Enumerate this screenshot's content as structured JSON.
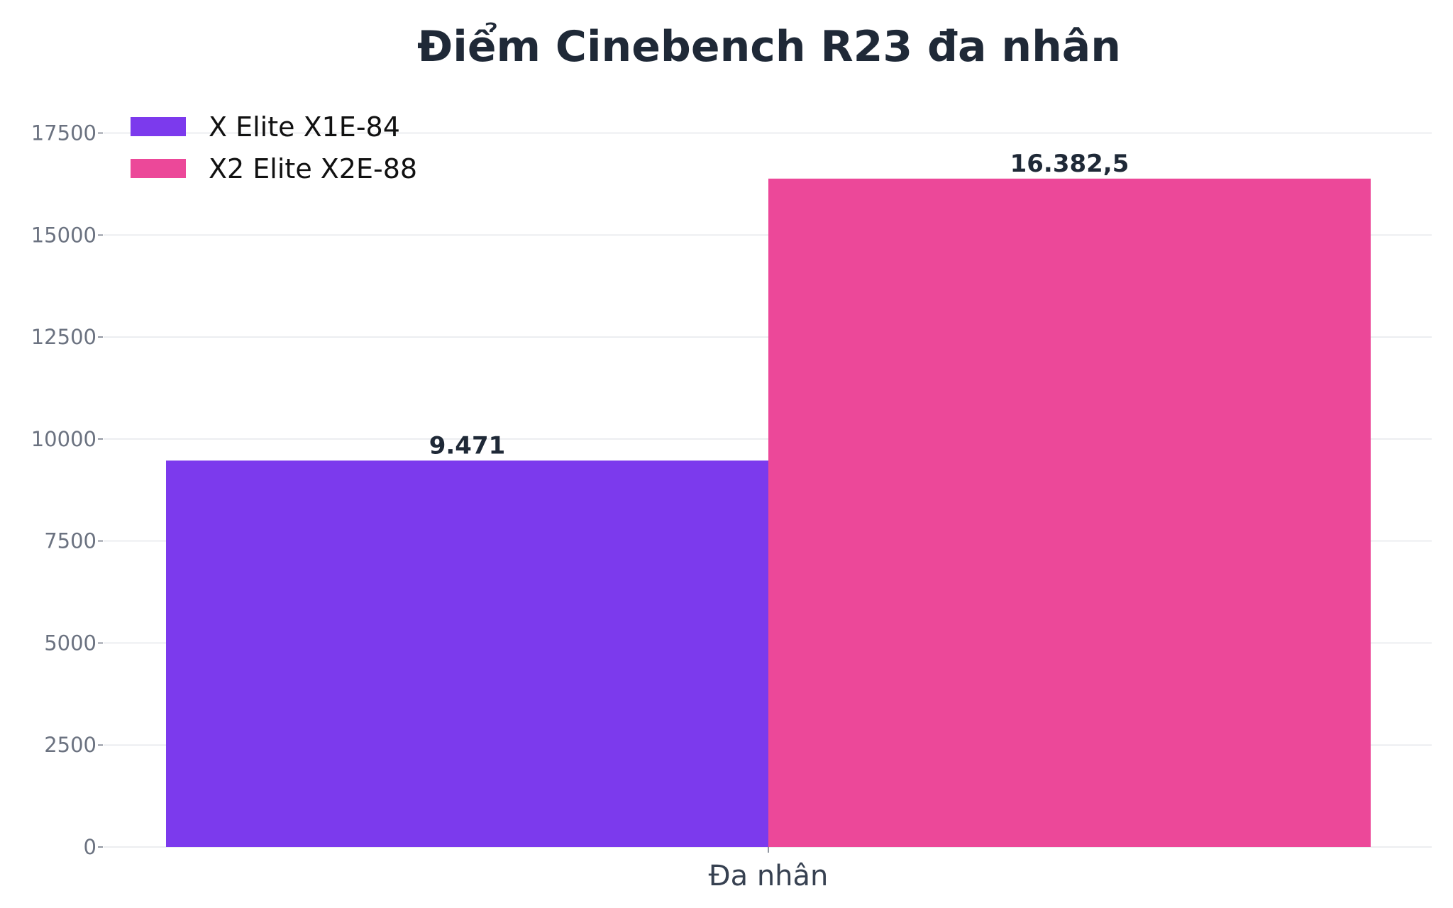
{
  "chart_data": {
    "type": "bar",
    "title": "Điểm Cinebench R23 đa nhân",
    "xlabel": "",
    "ylabel": "",
    "categories": [
      "Đa nhân"
    ],
    "series": [
      {
        "name": "X Elite X1E-84",
        "values": [
          9471
        ],
        "value_labels": [
          "9.471"
        ],
        "color": "#7c3aed"
      },
      {
        "name": "X2 Elite X2E-88",
        "values": [
          16382.5
        ],
        "value_labels": [
          "16.382,5"
        ],
        "color": "#ec4899"
      }
    ],
    "ylim": [
      0,
      18500
    ],
    "yticks": [
      0,
      2500,
      5000,
      7500,
      10000,
      12500,
      15000,
      17500
    ],
    "grid": true,
    "legend_position": "top-left",
    "colors": {
      "title": "#1f2937",
      "tick_label": "#6b7280",
      "category_label": "#374151",
      "value_label": "#1f2937",
      "grid": "#e5e7eb",
      "legend_text": "#111111"
    }
  }
}
